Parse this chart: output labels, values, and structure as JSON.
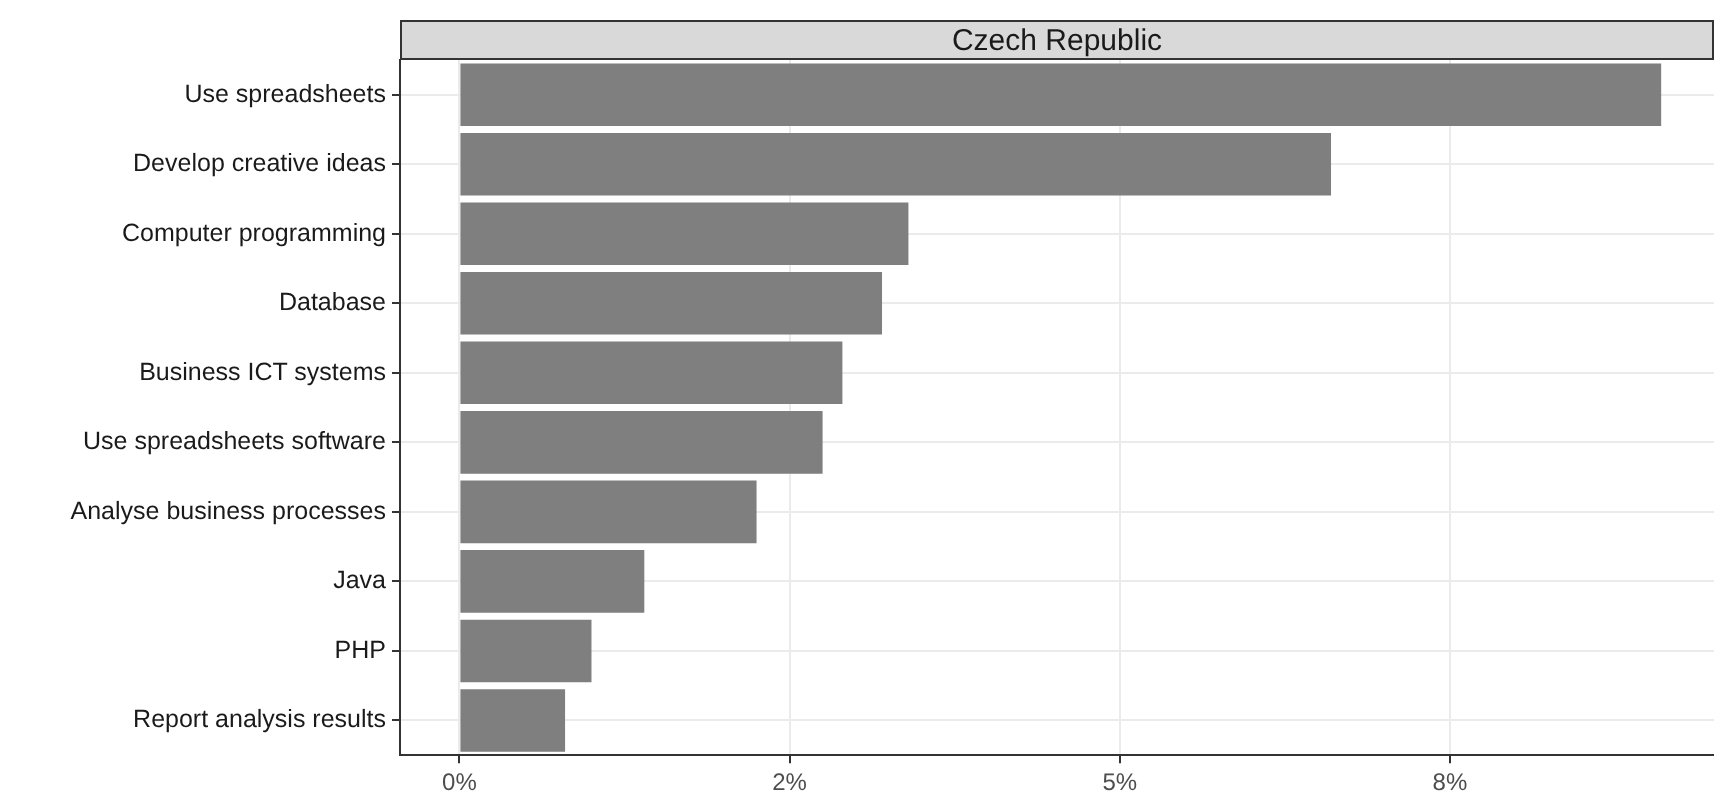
{
  "chart_data": {
    "type": "bar",
    "orientation": "horizontal",
    "title": "Czech Republic",
    "categories": [
      "Use spreadsheets",
      "Develop creative ideas",
      "Computer programming",
      "Database",
      "Business ICT systems",
      "Use spreadsheets software",
      "Analyse business processes",
      "Java",
      "PHP",
      "Report analysis results"
    ],
    "values": [
      9.1,
      6.6,
      3.4,
      3.2,
      2.9,
      2.75,
      2.25,
      1.4,
      1.0,
      0.8
    ],
    "color": "#7f7f7f",
    "xlim": [
      -0.45,
      9.5
    ],
    "xticks": [
      {
        "value": 0,
        "label": "0%"
      },
      {
        "value": 2.5,
        "label": "2%"
      },
      {
        "value": 5,
        "label": "5%"
      },
      {
        "value": 7.5,
        "label": "8%"
      }
    ],
    "grid": true
  }
}
